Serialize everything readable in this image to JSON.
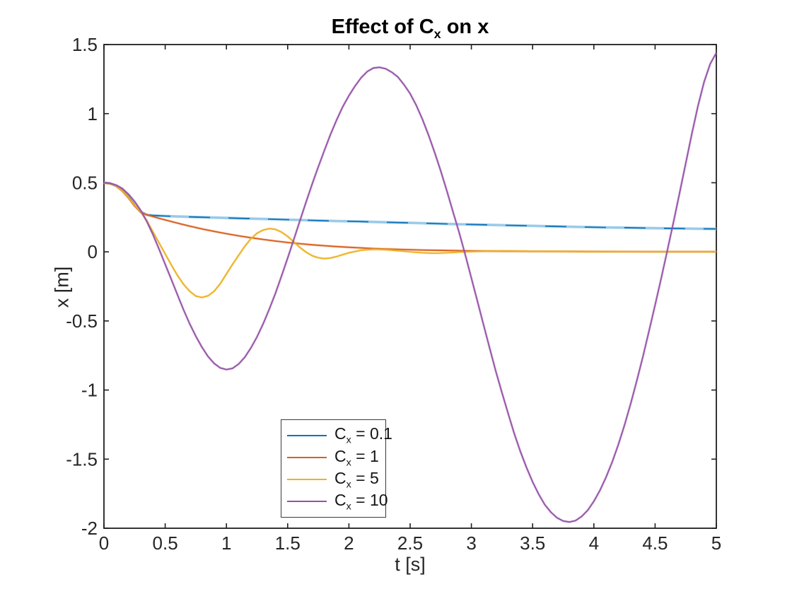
{
  "figure": {
    "background": "#ffffff"
  },
  "chart_data": {
    "type": "line",
    "title": "Effect of C_x on x",
    "title_parts": {
      "pre": "Effect of C",
      "sub": "x",
      "post": " on x"
    },
    "xlabel": "t [s]",
    "ylabel": "x [m]",
    "xlim": [
      0,
      5
    ],
    "ylim": [
      -2,
      1.5
    ],
    "xticks": [
      "0",
      "0.5",
      "1",
      "1.5",
      "2",
      "2.5",
      "3",
      "3.5",
      "4",
      "4.5",
      "5"
    ],
    "yticks": [
      "-2",
      "-1.5",
      "-1",
      "-0.5",
      "0",
      "0.5",
      "1",
      "1.5"
    ],
    "grid": false,
    "box": true,
    "axis_color": "#1f1f1f",
    "tick_text_color": "#262626",
    "legend": {
      "position": "inside-bottom-center-left",
      "border_color": "#3a3a3a",
      "entries": [
        "C_x = 0.1",
        "C_x = 1",
        "C_x = 5",
        "C_x = 10"
      ]
    },
    "series": [
      {
        "name": "C_x = 0.1",
        "label_parts": {
          "base": "C",
          "sub": "x",
          "rest": " = 0.1"
        },
        "color": "#0e73b8",
        "halo": "#a6d1ec",
        "halo_dash": "26 30",
        "points": [
          [
            0,
            0.5
          ],
          [
            0.05,
            0.495
          ],
          [
            0.1,
            0.478
          ],
          [
            0.15,
            0.445
          ],
          [
            0.2,
            0.4
          ],
          [
            0.25,
            0.34
          ],
          [
            0.3,
            0.29
          ],
          [
            0.35,
            0.268
          ],
          [
            0.4,
            0.263
          ],
          [
            0.5,
            0.259
          ],
          [
            0.7,
            0.253
          ],
          [
            0.9,
            0.248
          ],
          [
            1.1,
            0.243
          ],
          [
            1.3,
            0.238
          ],
          [
            1.5,
            0.233
          ],
          [
            1.7,
            0.228
          ],
          [
            1.9,
            0.223
          ],
          [
            2.1,
            0.219
          ],
          [
            2.3,
            0.214
          ],
          [
            2.5,
            0.21
          ],
          [
            2.7,
            0.205
          ],
          [
            2.9,
            0.2
          ],
          [
            3.1,
            0.196
          ],
          [
            3.3,
            0.192
          ],
          [
            3.5,
            0.188
          ],
          [
            3.7,
            0.184
          ],
          [
            3.9,
            0.18
          ],
          [
            4.1,
            0.177
          ],
          [
            4.3,
            0.174
          ],
          [
            4.5,
            0.171
          ],
          [
            4.7,
            0.169
          ],
          [
            4.85,
            0.167
          ],
          [
            5,
            0.166
          ]
        ]
      },
      {
        "name": "C_x = 1",
        "label_parts": {
          "base": "C",
          "sub": "x",
          "rest": " = 1"
        },
        "color": "#d95f1e",
        "points": [
          [
            0,
            0.5
          ],
          [
            0.05,
            0.494
          ],
          [
            0.1,
            0.476
          ],
          [
            0.15,
            0.44
          ],
          [
            0.2,
            0.39
          ],
          [
            0.25,
            0.332
          ],
          [
            0.3,
            0.287
          ],
          [
            0.35,
            0.268
          ],
          [
            0.4,
            0.255
          ],
          [
            0.45,
            0.243
          ],
          [
            0.5,
            0.231
          ],
          [
            0.6,
            0.208
          ],
          [
            0.7,
            0.186
          ],
          [
            0.8,
            0.166
          ],
          [
            0.9,
            0.148
          ],
          [
            1,
            0.131
          ],
          [
            1.1,
            0.116
          ],
          [
            1.2,
            0.102
          ],
          [
            1.3,
            0.09
          ],
          [
            1.4,
            0.078
          ],
          [
            1.5,
            0.068
          ],
          [
            1.6,
            0.059
          ],
          [
            1.7,
            0.051
          ],
          [
            1.8,
            0.044
          ],
          [
            1.9,
            0.038
          ],
          [
            2,
            0.033
          ],
          [
            2.2,
            0.024
          ],
          [
            2.4,
            0.018
          ],
          [
            2.6,
            0.013
          ],
          [
            2.8,
            0.01
          ],
          [
            3,
            0.007
          ],
          [
            3.2,
            0.005
          ],
          [
            3.5,
            0.004
          ],
          [
            4,
            0.002
          ],
          [
            4.5,
            0.001
          ],
          [
            5,
            0.001
          ]
        ]
      },
      {
        "name": "C_x = 5",
        "label_parts": {
          "base": "C",
          "sub": "x",
          "rest": " = 5"
        },
        "color": "#edb120",
        "points": [
          [
            0,
            0.5
          ],
          [
            0.05,
            0.494
          ],
          [
            0.1,
            0.477
          ],
          [
            0.15,
            0.442
          ],
          [
            0.2,
            0.395
          ],
          [
            0.25,
            0.338
          ],
          [
            0.3,
            0.29
          ],
          [
            0.35,
            0.225
          ],
          [
            0.4,
            0.145
          ],
          [
            0.45,
            0.065
          ],
          [
            0.5,
            -0.015
          ],
          [
            0.55,
            -0.095
          ],
          [
            0.6,
            -0.17
          ],
          [
            0.65,
            -0.235
          ],
          [
            0.7,
            -0.285
          ],
          [
            0.75,
            -0.32
          ],
          [
            0.8,
            -0.33
          ],
          [
            0.85,
            -0.318
          ],
          [
            0.9,
            -0.285
          ],
          [
            0.95,
            -0.23
          ],
          [
            1,
            -0.16
          ],
          [
            1.05,
            -0.09
          ],
          [
            1.1,
            -0.025
          ],
          [
            1.15,
            0.04
          ],
          [
            1.2,
            0.095
          ],
          [
            1.25,
            0.135
          ],
          [
            1.3,
            0.158
          ],
          [
            1.35,
            0.168
          ],
          [
            1.4,
            0.163
          ],
          [
            1.45,
            0.143
          ],
          [
            1.5,
            0.112
          ],
          [
            1.55,
            0.072
          ],
          [
            1.6,
            0.032
          ],
          [
            1.65,
            -0.002
          ],
          [
            1.7,
            -0.028
          ],
          [
            1.75,
            -0.043
          ],
          [
            1.8,
            -0.049
          ],
          [
            1.85,
            -0.045
          ],
          [
            1.9,
            -0.034
          ],
          [
            1.95,
            -0.02
          ],
          [
            2,
            -0.007
          ],
          [
            2.1,
            0.012
          ],
          [
            2.2,
            0.018
          ],
          [
            2.3,
            0.015
          ],
          [
            2.4,
            0.008
          ],
          [
            2.5,
            0
          ],
          [
            2.6,
            -0.007
          ],
          [
            2.7,
            -0.01
          ],
          [
            2.8,
            -0.007
          ],
          [
            2.9,
            -0.002
          ],
          [
            3,
            0.002
          ],
          [
            3.1,
            0.005
          ],
          [
            3.3,
            0.006
          ],
          [
            3.5,
            0.004
          ],
          [
            4,
            0.002
          ],
          [
            4.5,
            0.001
          ],
          [
            5,
            0.001
          ]
        ]
      },
      {
        "name": "C_x = 10",
        "label_parts": {
          "base": "C",
          "sub": "x",
          "rest": " = 10"
        },
        "color": "#9552a8",
        "points": [
          [
            0,
            0.5
          ],
          [
            0.05,
            0.496
          ],
          [
            0.1,
            0.483
          ],
          [
            0.15,
            0.458
          ],
          [
            0.2,
            0.418
          ],
          [
            0.25,
            0.365
          ],
          [
            0.3,
            0.3
          ],
          [
            0.35,
            0.22
          ],
          [
            0.4,
            0.125
          ],
          [
            0.45,
            0.02
          ],
          [
            0.5,
            -0.09
          ],
          [
            0.55,
            -0.2
          ],
          [
            0.6,
            -0.31
          ],
          [
            0.65,
            -0.42
          ],
          [
            0.7,
            -0.52
          ],
          [
            0.75,
            -0.61
          ],
          [
            0.8,
            -0.69
          ],
          [
            0.85,
            -0.757
          ],
          [
            0.9,
            -0.808
          ],
          [
            0.95,
            -0.84
          ],
          [
            1,
            -0.852
          ],
          [
            1.05,
            -0.843
          ],
          [
            1.1,
            -0.812
          ],
          [
            1.15,
            -0.762
          ],
          [
            1.2,
            -0.695
          ],
          [
            1.25,
            -0.615
          ],
          [
            1.3,
            -0.52
          ],
          [
            1.35,
            -0.415
          ],
          [
            1.4,
            -0.3
          ],
          [
            1.45,
            -0.175
          ],
          [
            1.5,
            -0.045
          ],
          [
            1.55,
            0.09
          ],
          [
            1.6,
            0.225
          ],
          [
            1.65,
            0.36
          ],
          [
            1.7,
            0.49
          ],
          [
            1.75,
            0.615
          ],
          [
            1.8,
            0.735
          ],
          [
            1.85,
            0.85
          ],
          [
            1.9,
            0.955
          ],
          [
            1.95,
            1.05
          ],
          [
            2,
            1.13
          ],
          [
            2.05,
            1.2
          ],
          [
            2.1,
            1.26
          ],
          [
            2.15,
            1.305
          ],
          [
            2.2,
            1.33
          ],
          [
            2.25,
            1.335
          ],
          [
            2.3,
            1.325
          ],
          [
            2.35,
            1.3
          ],
          [
            2.4,
            1.265
          ],
          [
            2.45,
            1.21
          ],
          [
            2.5,
            1.145
          ],
          [
            2.55,
            1.06
          ],
          [
            2.6,
            0.96
          ],
          [
            2.65,
            0.845
          ],
          [
            2.7,
            0.72
          ],
          [
            2.75,
            0.585
          ],
          [
            2.8,
            0.44
          ],
          [
            2.85,
            0.29
          ],
          [
            2.9,
            0.14
          ],
          [
            2.95,
            -0.02
          ],
          [
            3,
            -0.19
          ],
          [
            3.05,
            -0.36
          ],
          [
            3.1,
            -0.53
          ],
          [
            3.15,
            -0.7
          ],
          [
            3.2,
            -0.865
          ],
          [
            3.25,
            -1.02
          ],
          [
            3.3,
            -1.17
          ],
          [
            3.35,
            -1.315
          ],
          [
            3.4,
            -1.445
          ],
          [
            3.45,
            -1.56
          ],
          [
            3.5,
            -1.665
          ],
          [
            3.55,
            -1.755
          ],
          [
            3.6,
            -1.83
          ],
          [
            3.65,
            -1.885
          ],
          [
            3.7,
            -1.925
          ],
          [
            3.75,
            -1.948
          ],
          [
            3.8,
            -1.955
          ],
          [
            3.85,
            -1.945
          ],
          [
            3.9,
            -1.915
          ],
          [
            3.95,
            -1.87
          ],
          [
            4,
            -1.805
          ],
          [
            4.05,
            -1.725
          ],
          [
            4.1,
            -1.63
          ],
          [
            4.15,
            -1.52
          ],
          [
            4.2,
            -1.395
          ],
          [
            4.25,
            -1.255
          ],
          [
            4.3,
            -1.1
          ],
          [
            4.35,
            -0.935
          ],
          [
            4.4,
            -0.76
          ],
          [
            4.45,
            -0.575
          ],
          [
            4.5,
            -0.385
          ],
          [
            4.55,
            -0.19
          ],
          [
            4.6,
            0.01
          ],
          [
            4.65,
            0.215
          ],
          [
            4.7,
            0.425
          ],
          [
            4.75,
            0.64
          ],
          [
            4.8,
            0.855
          ],
          [
            4.85,
            1.055
          ],
          [
            4.9,
            1.23
          ],
          [
            4.95,
            1.36
          ],
          [
            5,
            1.44
          ]
        ]
      }
    ]
  }
}
